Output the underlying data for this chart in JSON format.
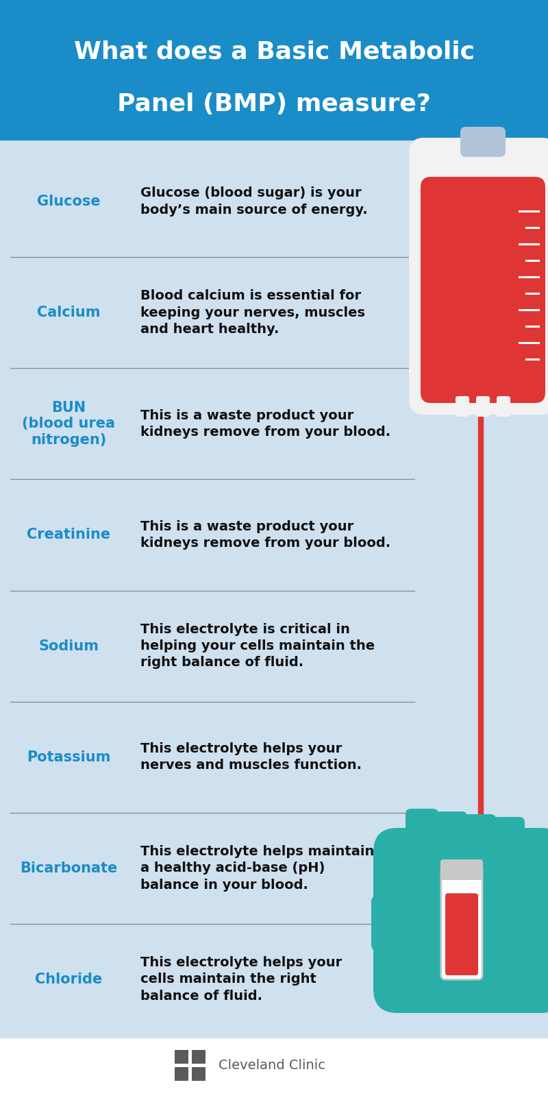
{
  "title_line1": "What does a Basic Metabolic",
  "title_line2": "Panel (BMP) measure?",
  "title_bg": "#1a8cc7",
  "title_text_color": "#ffffff",
  "body_bg": "#cfe0ef",
  "footer_bg": "#ffffff",
  "label_color": "#1a8cc7",
  "desc_color": "#111111",
  "divider_color": "#888888",
  "items": [
    {
      "label": "Glucose",
      "description": "Glucose (blood sugar) is your\nbody’s main source of energy."
    },
    {
      "label": "Calcium",
      "description": "Blood calcium is essential for\nkeeping your nerves, muscles\nand heart healthy."
    },
    {
      "label": "BUN\n(blood urea\nnitrogen)",
      "description": "This is a waste product your\nkidneys remove from your blood."
    },
    {
      "label": "Creatinine",
      "description": "This is a waste product your\nkidneys remove from your blood."
    },
    {
      "label": "Sodium",
      "description": "This electrolyte is critical in\nhelping your cells maintain the\nright balance of fluid."
    },
    {
      "label": "Potassium",
      "description": "This electrolyte helps your\nnerves and muscles function."
    },
    {
      "label": "Bicarbonate",
      "description": "This electrolyte helps maintain\na healthy acid-base (pH)\nbalance in your blood."
    },
    {
      "label": "Chloride",
      "description": "This electrolyte helps your\ncells maintain the right\nbalance of fluid."
    }
  ],
  "footer_logo_color": "#5a5a5a",
  "footer_text": "Cleveland Clinic",
  "bag_color": "#e03535",
  "bag_outer_color": "#f2f2f2",
  "bag_hanger_color": "#b0c4d8",
  "tube_color": "#e03535",
  "glove_color": "#2aafa8",
  "tick_color": "#ffffff"
}
